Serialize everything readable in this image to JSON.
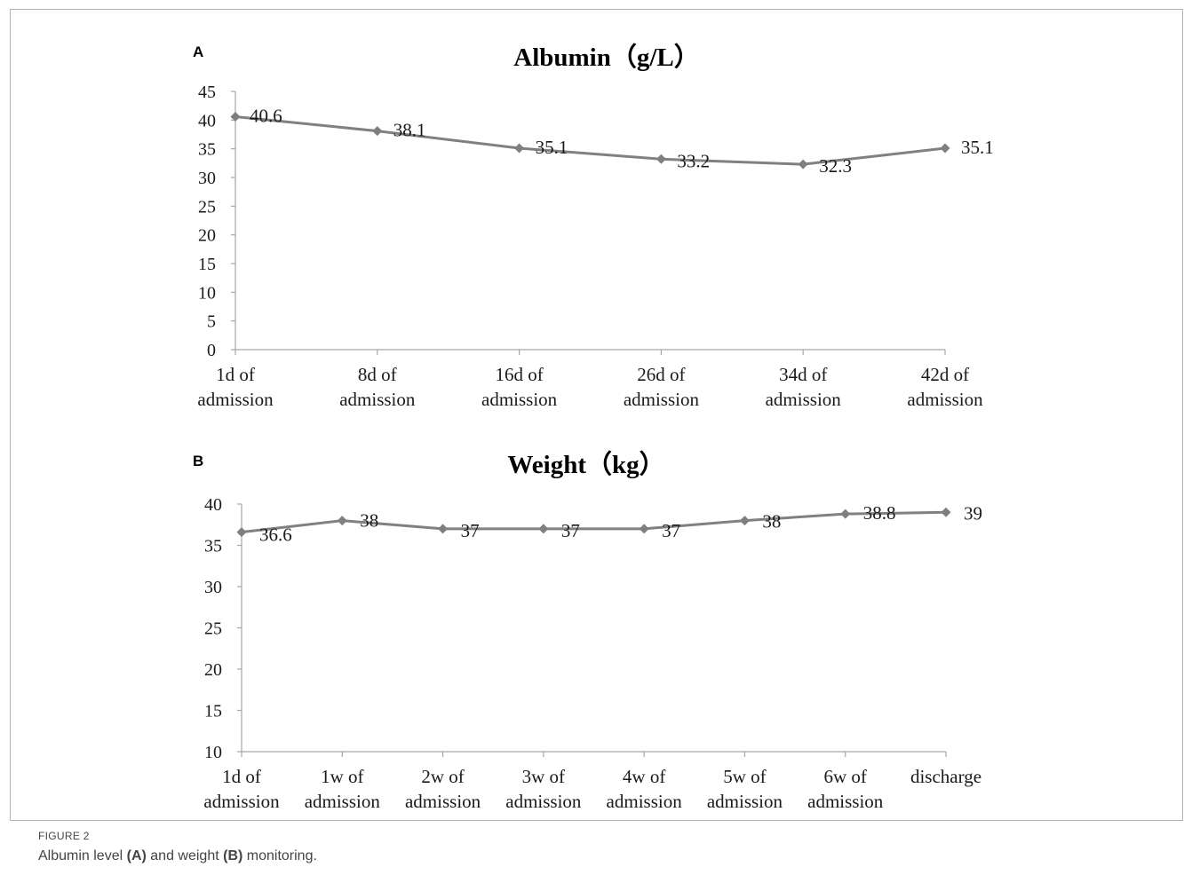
{
  "figure": {
    "label": "FIGURE 2",
    "caption_parts": [
      "Albumin level ",
      "(A)",
      " and weight ",
      "(B)",
      " monitoring."
    ]
  },
  "chart_data": [
    {
      "type": "line",
      "panel": "A",
      "title": "Albumin（g/L）",
      "categories": [
        [
          "1d  of",
          "admission"
        ],
        [
          "8d of",
          "admission"
        ],
        [
          "16d of",
          "admission"
        ],
        [
          "26d of",
          "admission"
        ],
        [
          "34d of",
          "admission"
        ],
        [
          "42d of",
          "admission"
        ]
      ],
      "values": [
        40.6,
        38.1,
        35.1,
        33.2,
        32.3,
        35.1
      ],
      "data_labels": [
        "40.6",
        "38.1",
        "35.1",
        "33.2",
        "32.3",
        "35.1"
      ],
      "yticks": [
        0,
        5,
        10,
        15,
        20,
        25,
        30,
        35,
        40,
        45
      ],
      "ylim": [
        0,
        45
      ],
      "grid": false,
      "legend": "none",
      "colors": {
        "line": "#808080",
        "marker": "#7f7f7f",
        "axis": "#a6a6a6"
      }
    },
    {
      "type": "line",
      "panel": "B",
      "title": "Weight（kg）",
      "categories": [
        [
          "1d of",
          "admission"
        ],
        [
          "1w of",
          "admission"
        ],
        [
          "2w of",
          "admission"
        ],
        [
          "3w of",
          "admission"
        ],
        [
          "4w of",
          "admission"
        ],
        [
          "5w of",
          "admission"
        ],
        [
          "6w of",
          "admission"
        ],
        [
          "discharge"
        ]
      ],
      "values": [
        36.6,
        38,
        37,
        37,
        37,
        38,
        38.8,
        39
      ],
      "data_labels": [
        "36.6",
        "38",
        "37",
        "37",
        "37",
        "38",
        "38.8",
        "39"
      ],
      "yticks": [
        10,
        15,
        20,
        25,
        30,
        35,
        40
      ],
      "ylim": [
        10,
        40
      ],
      "grid": false,
      "legend": "none",
      "colors": {
        "line": "#808080",
        "marker": "#7f7f7f",
        "axis": "#a6a6a6"
      }
    }
  ]
}
